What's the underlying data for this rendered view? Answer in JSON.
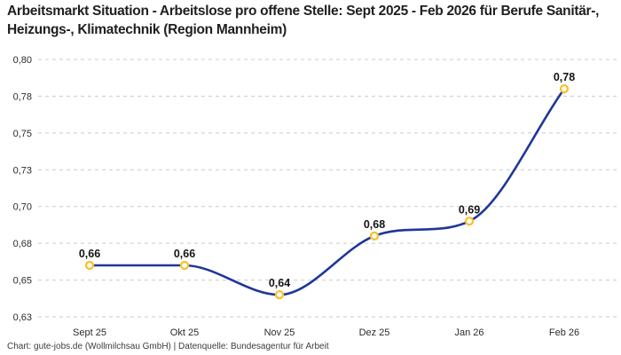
{
  "header": {
    "title": "Arbeitsmarkt Situation - Arbeitslose pro offene Stelle: Sept 2025 - Feb 2026 für Berufe Sanitär-, Heizungs-, Klimatechnik (Region Mannheim)"
  },
  "footer": {
    "credit": "Chart: gute-jobs.de (Wollmilchsau GmbH) | Datenquelle: Bundesagentur für Arbeit"
  },
  "chart_data": {
    "type": "line",
    "title": "Arbeitsmarkt Situation - Arbeitslose pro offene Stelle: Sept 2025 - Feb 2026 für Berufe Sanitär-, Heizungs-, Klimatechnik (Region Mannheim)",
    "categories": [
      "Sept 25",
      "Okt 25",
      "Nov 25",
      "Dez 25",
      "Jan 26",
      "Feb 26"
    ],
    "values": [
      0.66,
      0.66,
      0.64,
      0.68,
      0.69,
      0.78
    ],
    "value_labels": [
      "0,66",
      "0,66",
      "0,64",
      "0,68",
      "0,69",
      "0,78"
    ],
    "xlabel": "",
    "ylabel": "",
    "ylim": [
      0.625,
      0.8
    ],
    "y_ticks": [
      {
        "value": 0.8,
        "label": "0,80"
      },
      {
        "value": 0.775,
        "label": "0,78"
      },
      {
        "value": 0.75,
        "label": "0,75"
      },
      {
        "value": 0.725,
        "label": "0,73"
      },
      {
        "value": 0.7,
        "label": "0,70"
      },
      {
        "value": 0.675,
        "label": "0,68"
      },
      {
        "value": 0.65,
        "label": "0,65"
      },
      {
        "value": 0.625,
        "label": "0,63"
      }
    ],
    "grid": "horizontal-dashed",
    "legend": "none",
    "curve": "monotone",
    "colors": {
      "line": "#1e3799",
      "marker_ring": "#f8c12c",
      "marker_fill": "#ffffff",
      "grid": "#cbcbcb",
      "data_label": "#141414",
      "tick_label": "#2b2b2b",
      "title": "#1f1f1f",
      "footer": "#3c3c3c",
      "background": "#ffffff"
    }
  }
}
